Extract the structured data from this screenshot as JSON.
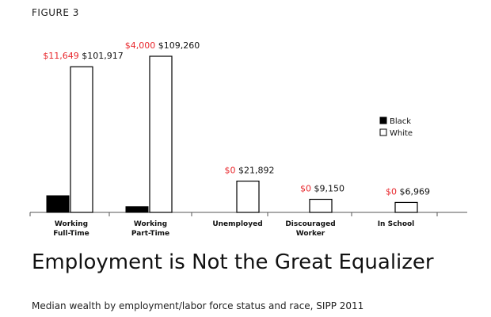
{
  "figure_label": "FIGURE 3",
  "headline": "Employment is Not the Great Equalizer",
  "caption": "Median wealth by employment/labor force status and race, SIPP 2011",
  "colors": {
    "black_series": "#000000",
    "white_series": "#ffffff",
    "bar_stroke": "#000000",
    "black_label": "#e8262b",
    "white_label": "#111111"
  },
  "chart_data": {
    "type": "bar",
    "categories": [
      [
        "Working",
        "Full-Time"
      ],
      [
        "Working",
        "Part-Time"
      ],
      [
        "Unemployed"
      ],
      [
        "Discouraged",
        "Worker"
      ],
      [
        "In School"
      ]
    ],
    "series": [
      {
        "name": "Black",
        "values": [
          11649,
          4000,
          0,
          0,
          0
        ],
        "labels": [
          "$11,649",
          "$4,000",
          "$0",
          "$0",
          "$0"
        ]
      },
      {
        "name": "White",
        "values": [
          101917,
          109260,
          21892,
          9150,
          6969
        ],
        "labels": [
          "$101,917",
          "$109,260",
          "$21,892",
          "$9,150",
          "$6,969"
        ]
      }
    ],
    "ylim": [
      0,
      120000
    ],
    "legend": {
      "position": "right",
      "entries": [
        "Black",
        "White"
      ]
    },
    "grid": false
  }
}
